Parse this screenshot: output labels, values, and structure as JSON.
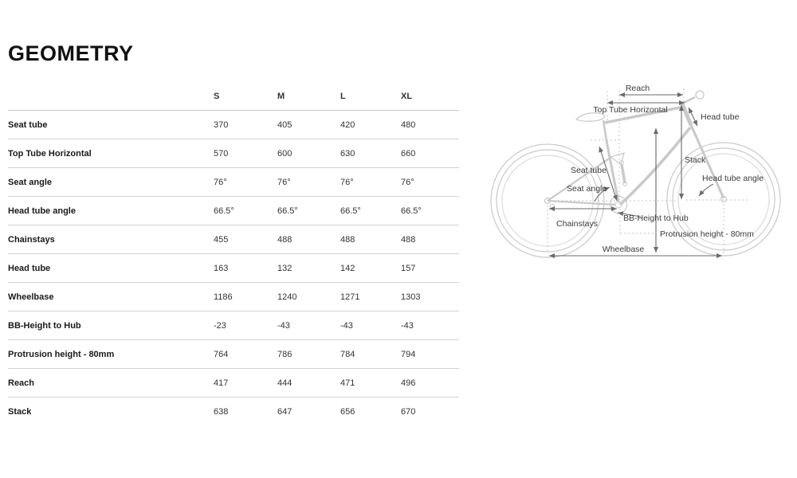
{
  "page": {
    "title": "GEOMETRY"
  },
  "table": {
    "columns": [
      "S",
      "M",
      "L",
      "XL"
    ],
    "rows": [
      {
        "label": "Seat tube",
        "values": [
          "370",
          "405",
          "420",
          "480"
        ]
      },
      {
        "label": "Top Tube Horizontal",
        "values": [
          "570",
          "600",
          "630",
          "660"
        ]
      },
      {
        "label": "Seat angle",
        "values": [
          "76°",
          "76°",
          "76°",
          "76°"
        ]
      },
      {
        "label": "Head tube angle",
        "values": [
          "66.5°",
          "66.5°",
          "66.5°",
          "66.5°"
        ]
      },
      {
        "label": "Chainstays",
        "values": [
          "455",
          "488",
          "488",
          "488"
        ]
      },
      {
        "label": "Head tube",
        "values": [
          "163",
          "132",
          "142",
          "157"
        ]
      },
      {
        "label": "Wheelbase",
        "values": [
          "1186",
          "1240",
          "1271",
          "1303"
        ]
      },
      {
        "label": "BB-Height to Hub",
        "values": [
          "-23",
          "-43",
          "-43",
          "-43"
        ]
      },
      {
        "label": "Protrusion height - 80mm",
        "values": [
          "764",
          "786",
          "784",
          "794"
        ]
      },
      {
        "label": "Reach",
        "values": [
          "417",
          "444",
          "471",
          "496"
        ]
      },
      {
        "label": "Stack",
        "values": [
          "638",
          "647",
          "656",
          "670"
        ]
      }
    ]
  },
  "diagram": {
    "labels": {
      "reach": "Reach",
      "top_tube_horizontal": "Top Tube Horizontal",
      "head_tube": "Head tube",
      "stack": "Stack",
      "head_tube_angle": "Head tube angle",
      "seat_tube": "Seat tube",
      "seat_angle": "Seat angle",
      "chainstays": "Chainstays",
      "bb_height_to_hub": "BB-Height to Hub",
      "protrusion_height": "Protrusion height - 80mm",
      "wheelbase": "Wheelbase"
    }
  },
  "colors": {
    "background": "#ffffff",
    "text_primary": "#1a1a1a",
    "text_secondary": "#333333",
    "table_border": "#d2d2d2",
    "bike_outline": "#c9c9c9",
    "dimension_line": "#6a6a6a"
  }
}
